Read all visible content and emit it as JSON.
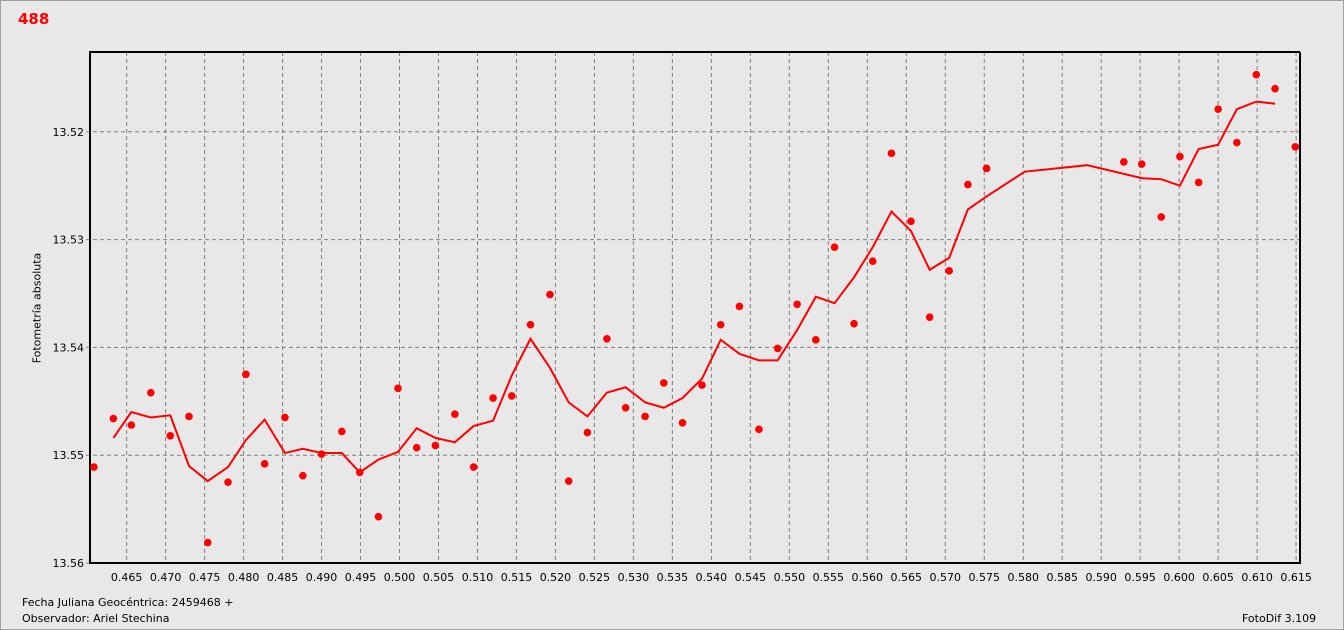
{
  "title": "488",
  "footer": {
    "date_label": "Fecha Juliana Geocéntrica: 2459468 +",
    "observer": "Observador: Ariel Stechina",
    "software": "FotoDif 3.109"
  },
  "chart_data": {
    "type": "scatter",
    "title": "488",
    "xlabel": "",
    "ylabel": "Fotometría absoluta",
    "xlim": [
      0.4603,
      0.6155
    ],
    "ylim": [
      13.5126,
      13.56
    ],
    "y_inverted": true,
    "grid": true,
    "color": "#ff0000",
    "x_ticks": [
      "0.465",
      "0.470",
      "0.475",
      "0.480",
      "0.485",
      "0.490",
      "0.495",
      "0.500",
      "0.505",
      "0.510",
      "0.515",
      "0.520",
      "0.525",
      "0.530",
      "0.535",
      "0.540",
      "0.545",
      "0.550",
      "0.555",
      "0.560",
      "0.565",
      "0.570",
      "0.575",
      "0.580",
      "0.585",
      "0.590",
      "0.595",
      "0.600",
      "0.605",
      "0.610",
      "0.615"
    ],
    "y_ticks": [
      "13.52",
      "13.53",
      "13.54",
      "13.55",
      "13.56"
    ],
    "points": {
      "x": [
        0.4608,
        0.4633,
        0.4656,
        0.4681,
        0.4706,
        0.473,
        0.4754,
        0.478,
        0.4803,
        0.4827,
        0.4853,
        0.4876,
        0.49,
        0.4926,
        0.4949,
        0.4973,
        0.4998,
        0.5022,
        0.5046,
        0.5071,
        0.5095,
        0.512,
        0.5144,
        0.5168,
        0.5193,
        0.5217,
        0.5241,
        0.5266,
        0.529,
        0.5315,
        0.5339,
        0.5363,
        0.5388,
        0.5412,
        0.5436,
        0.5461,
        0.5485,
        0.551,
        0.5534,
        0.5558,
        0.5583,
        0.5607,
        0.5631,
        0.5656,
        0.568,
        0.5705,
        0.5729,
        0.5753,
        0.5929,
        0.5952,
        0.5977,
        0.6001,
        0.6025,
        0.605,
        0.6074,
        0.6099,
        0.6123,
        0.6149
      ],
      "y": [
        13.5511,
        13.5466,
        13.5472,
        13.5442,
        13.5482,
        13.5464,
        13.5581,
        13.5525,
        13.5425,
        13.5508,
        13.5465,
        13.5519,
        13.5499,
        13.5478,
        13.5516,
        13.5557,
        13.5438,
        13.5493,
        13.5491,
        13.5462,
        13.5511,
        13.5447,
        13.5445,
        13.5379,
        13.5351,
        13.5524,
        13.5479,
        13.5392,
        13.5456,
        13.5464,
        13.5433,
        13.547,
        13.5435,
        13.5379,
        13.5362,
        13.5476,
        13.5401,
        13.536,
        13.5393,
        13.5307,
        13.5378,
        13.532,
        13.522,
        13.5283,
        13.5372,
        13.5329,
        13.5249,
        13.5234,
        13.5228,
        13.523,
        13.5279,
        13.5223,
        13.5247,
        13.5179,
        13.521,
        13.5147,
        13.516,
        13.5214
      ]
    },
    "line": {
      "x": [
        0.4633,
        0.4656,
        0.4681,
        0.4706,
        0.473,
        0.4754,
        0.478,
        0.4803,
        0.4827,
        0.4853,
        0.4876,
        0.49,
        0.4926,
        0.4949,
        0.4973,
        0.4998,
        0.5022,
        0.5046,
        0.5071,
        0.5095,
        0.512,
        0.5144,
        0.5168,
        0.5193,
        0.5217,
        0.5241,
        0.5266,
        0.529,
        0.5315,
        0.5339,
        0.5363,
        0.5388,
        0.5412,
        0.5436,
        0.5461,
        0.5485,
        0.551,
        0.5534,
        0.5558,
        0.5583,
        0.5607,
        0.5631,
        0.5656,
        0.568,
        0.5705,
        0.5729,
        0.5753,
        0.5802,
        0.5882,
        0.5952,
        0.5977,
        0.6001,
        0.6025,
        0.605,
        0.6074,
        0.6099,
        0.6123
      ],
      "y": [
        13.5484,
        13.546,
        13.5465,
        13.5463,
        13.551,
        13.5524,
        13.5511,
        13.5486,
        13.5467,
        13.5498,
        13.5494,
        13.5498,
        13.5498,
        13.5516,
        13.5504,
        13.5497,
        13.5475,
        13.5484,
        13.5488,
        13.5473,
        13.5468,
        13.5426,
        13.5392,
        13.5419,
        13.5451,
        13.5464,
        13.5442,
        13.5437,
        13.5451,
        13.5456,
        13.5447,
        13.5429,
        13.5393,
        13.5406,
        13.5412,
        13.5412,
        13.5384,
        13.5353,
        13.5359,
        13.5335,
        13.5307,
        13.5274,
        13.5292,
        13.5328,
        13.5317,
        13.5272,
        13.526,
        13.5237,
        13.5231,
        13.5243,
        13.5244,
        13.525,
        13.5216,
        13.5212,
        13.5179,
        13.5172,
        13.5174
      ]
    }
  }
}
